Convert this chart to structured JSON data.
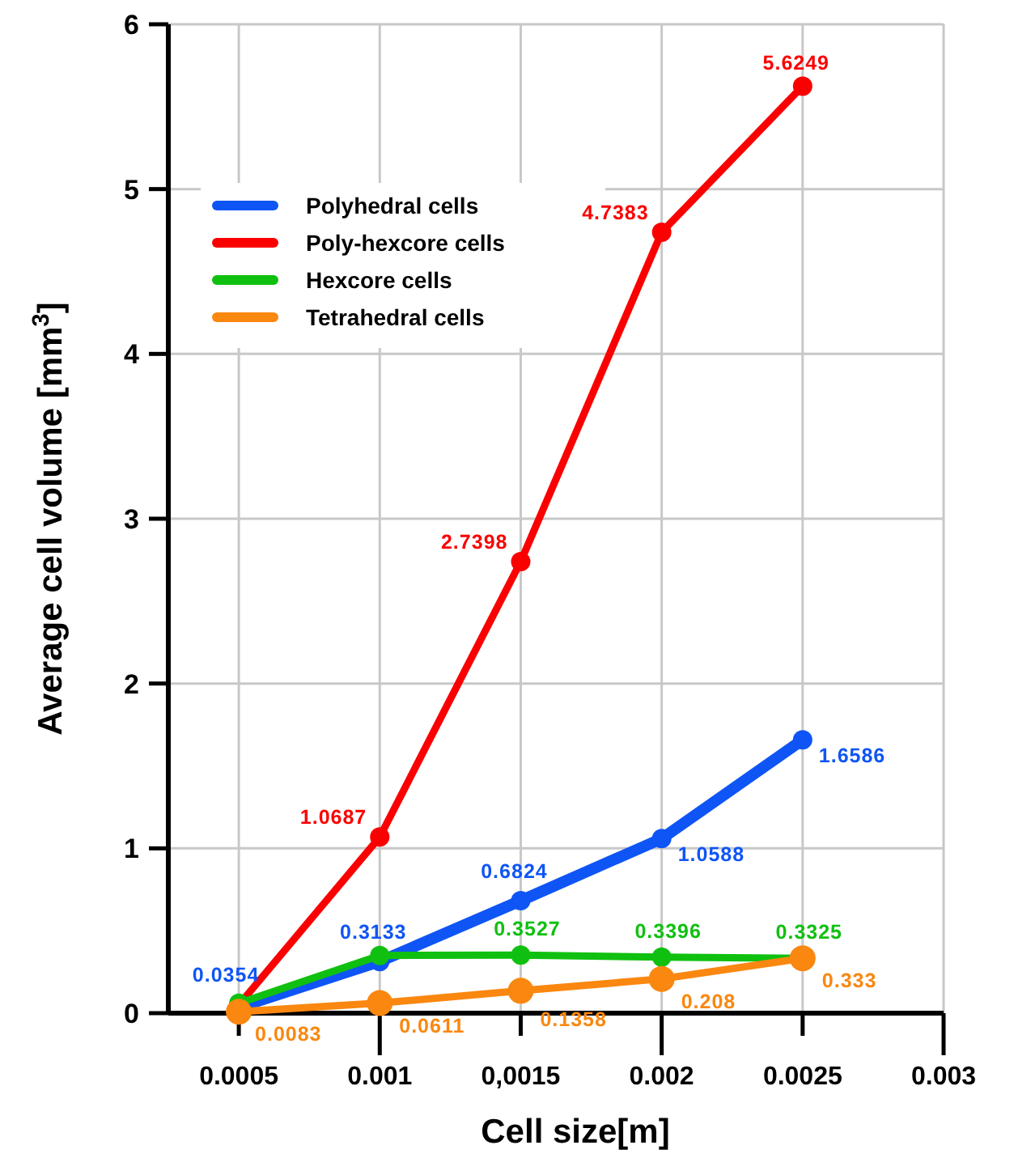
{
  "chart_data": {
    "type": "line",
    "xlabel": "Cell size[m]",
    "ylabel": "Average cell volume [mm$^{3}$]",
    "x": [
      0.0005,
      0.001,
      0.0015,
      0.002,
      0.0025
    ],
    "xlim": [
      0.00025,
      0.003
    ],
    "xticks": [
      0.0005,
      0.001,
      {
        "value": 0.0015,
        "label": "0,0015"
      },
      0.002,
      0.0025,
      0.003
    ],
    "ylim": [
      0,
      6
    ],
    "yticks": [
      0,
      1,
      2,
      3,
      4,
      5,
      6
    ],
    "grid": true,
    "legend": "top left",
    "marker": "circle",
    "line_style": "solid",
    "series": [
      {
        "name": "Polyhedral cells",
        "color": "#0f55f5",
        "values": [
          0.0354,
          0.3133,
          0.6824,
          1.0588,
          1.6586
        ],
        "value_labels": [
          "0.0354",
          "0.3133",
          "0.6824",
          "1.0588",
          "1.6586"
        ]
      },
      {
        "name": "Poly-hexcore cells",
        "color": "#fa0000",
        "values": [
          0.05,
          1.0687,
          2.7398,
          4.7383,
          5.6249
        ],
        "value_labels": [
          null,
          "1.0687",
          "2.7398",
          "4.7383",
          "5.6249"
        ]
      },
      {
        "name": "Hexcore cells",
        "color": "#10c010",
        "values": [
          0.06,
          0.35,
          0.3527,
          0.3396,
          0.3325
        ],
        "value_labels": [
          null,
          null,
          "0.3527",
          "0.3396",
          "0.3325"
        ]
      },
      {
        "name": "Tetrahedral cells",
        "color": "#fa870f",
        "values": [
          0.0083,
          0.0611,
          0.1358,
          0.208,
          0.333
        ],
        "value_labels": [
          "0.0083",
          "0.0611",
          "0.1358",
          "0.208",
          "0.333"
        ]
      }
    ]
  }
}
